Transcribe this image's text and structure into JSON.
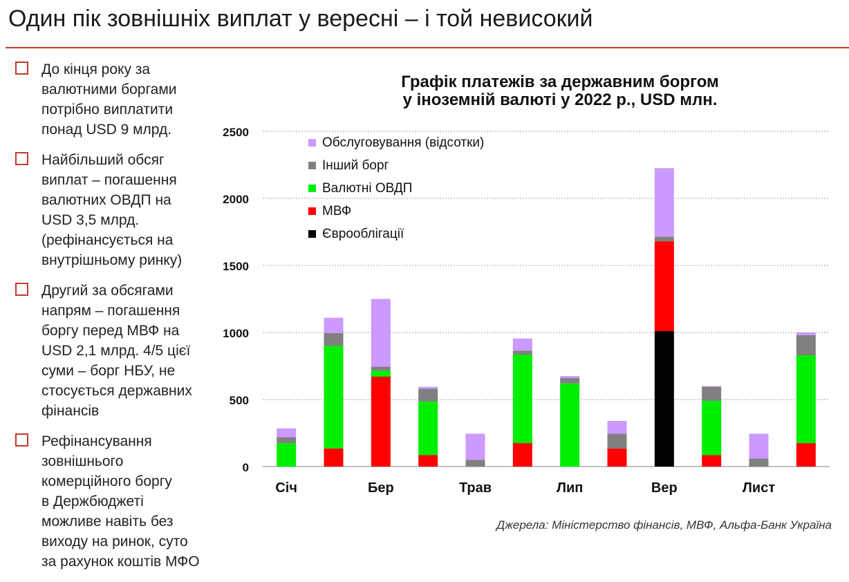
{
  "slide": {
    "title": "Один пік зовнішніх виплат у вересні – і той невисокий",
    "source": "Джерела: Міністерство фінансів, МВФ, Альфа-Банк Україна"
  },
  "bullets": [
    "До кінця року за\nвалютними боргами\nпотрібно виплатити\nпонад USD 9 млрд.",
    "Найбільший обсяг\nвиплат – погашення\nвалютних ОВДП на\nUSD 3,5 млрд.\n(рефінансується на\nвнутрішньому ринку)",
    "Другий за обсягами\nнапрям – погашення\nборгу перед МВФ на\nUSD 2,1 млрд. 4/5 цієї\nсуми – борг НБУ, не\nстосується державних\nфінансів",
    "Рефінансування\nзовнішнього\nкомерційного боргу\nв Держбюджеті\nможливе навіть без\nвиходу на ринок, суто\nза рахунок коштів МФО"
  ],
  "chart_data": {
    "type": "bar",
    "stacked": true,
    "title": "Графік платежів за державним боргом\nу іноземній валюті у 2022 р., USD млн.",
    "categories": [
      "Січ",
      "",
      "Бер",
      "",
      "Трав",
      "",
      "Лип",
      "",
      "Вер",
      "",
      "Лист",
      ""
    ],
    "ylim": [
      0,
      2500
    ],
    "yticks": [
      0,
      500,
      1000,
      1500,
      2000,
      2500
    ],
    "grid": true,
    "legend_position": "top-left",
    "series": [
      {
        "name": "Єврооблігації",
        "color": "#000000",
        "values": [
          0,
          0,
          0,
          0,
          0,
          0,
          0,
          0,
          1010,
          0,
          0,
          0
        ]
      },
      {
        "name": "МВФ",
        "color": "#ff0000",
        "values": [
          0,
          135,
          670,
          85,
          0,
          175,
          0,
          135,
          670,
          85,
          0,
          175
        ]
      },
      {
        "name": "Валютні ОВДП",
        "color": "#00ee00",
        "values": [
          175,
          765,
          45,
          400,
          0,
          660,
          620,
          0,
          0,
          405,
          0,
          655
        ]
      },
      {
        "name": "Інший борг",
        "color": "#808080",
        "values": [
          45,
          95,
          30,
          95,
          50,
          30,
          40,
          110,
          35,
          105,
          60,
          150
        ]
      },
      {
        "name": "Обслуговування (відсотки)",
        "color": "#cc99ff",
        "values": [
          65,
          115,
          505,
          15,
          195,
          90,
          15,
          95,
          510,
          5,
          185,
          20
        ]
      }
    ],
    "legend_order": [
      "Обслуговування (відсотки)",
      "Інший борг",
      "Валютні ОВДП",
      "МВФ",
      "Єврооблігації"
    ]
  }
}
